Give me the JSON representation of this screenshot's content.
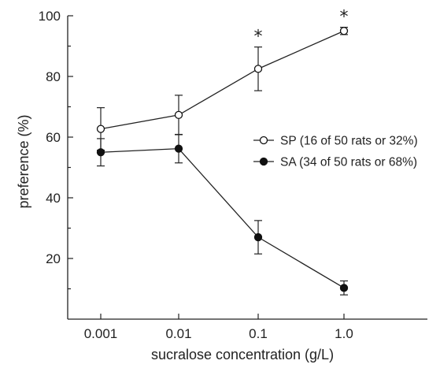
{
  "chart_data": {
    "type": "line",
    "title": "",
    "xlabel": "sucralose concentration (g/L)",
    "ylabel": "preference (%)",
    "categories": [
      "0.001",
      "0.01",
      "0.1",
      "1.0"
    ],
    "x_scale": "log",
    "ylim": [
      0,
      100
    ],
    "yticks": [
      20,
      40,
      60,
      80,
      100
    ],
    "grid": false,
    "legend_position": "right",
    "series": [
      {
        "name": "SP (16 of 50 rats or 32%)",
        "marker": "open-circle",
        "values": [
          62.7,
          67.3,
          82.5,
          95.0
        ],
        "error": [
          7.0,
          6.5,
          7.2,
          1.2
        ]
      },
      {
        "name": "SA (34 of 50 rats or 68%)",
        "marker": "filled-circle",
        "values": [
          55.0,
          56.2,
          27.0,
          10.3
        ],
        "error": [
          4.5,
          4.7,
          5.5,
          2.3
        ]
      }
    ],
    "annotations": [
      {
        "text": "*",
        "category": "0.1",
        "y": 82.5
      },
      {
        "text": "*",
        "category": "1.0",
        "y": 95.0
      }
    ]
  }
}
